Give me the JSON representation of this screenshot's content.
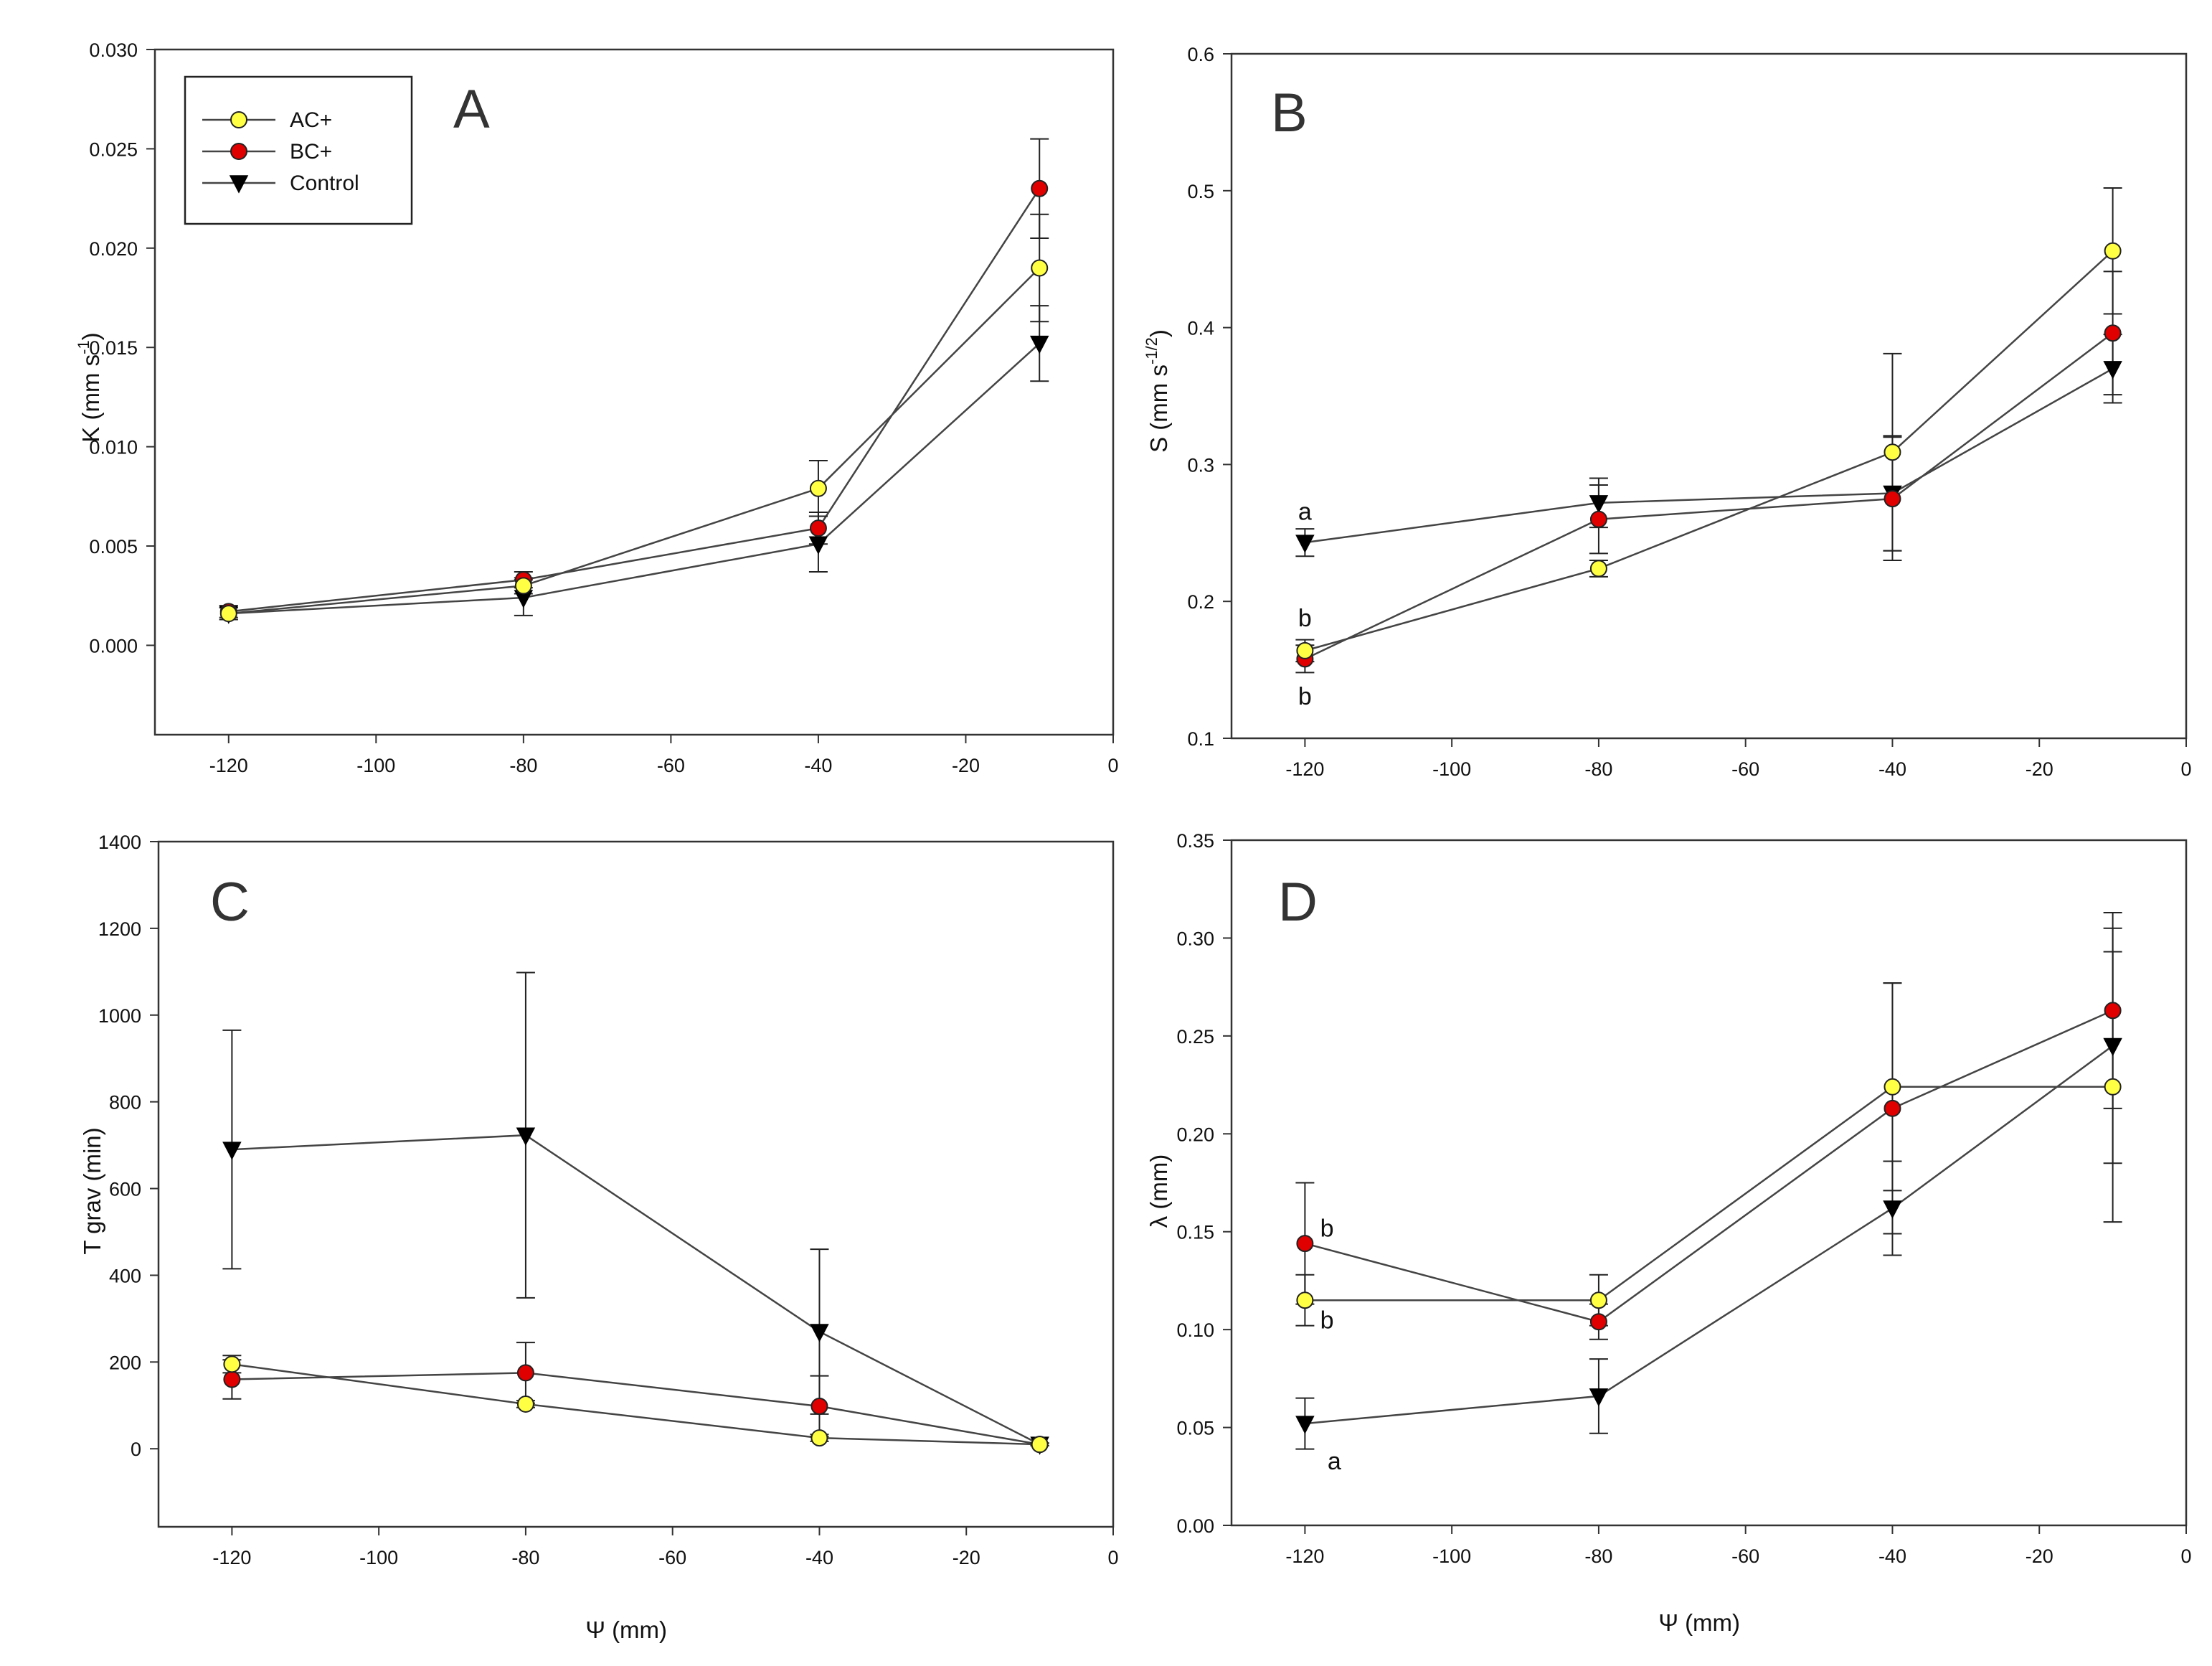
{
  "chart_data": [
    {
      "panel": "A",
      "type": "line",
      "ylabel": "K (mm s",
      "ylabel_sup": "-1",
      "ylabel_end": ")",
      "xlabel": "",
      "xlim": [
        -130,
        0
      ],
      "ylim": [
        -0.0045,
        0.03
      ],
      "xticks": [
        -120,
        -100,
        -80,
        -60,
        -40,
        -20,
        0
      ],
      "xtick_labels": [
        "-120",
        "-100",
        "-80",
        "-60",
        "-40",
        "-20",
        "0"
      ],
      "yticks": [
        0,
        0.005,
        0.01,
        0.015,
        0.02,
        0.025,
        0.03
      ],
      "ytick_labels": [
        "0.000",
        "0.005",
        "0.010",
        "0.015",
        "0.020",
        "0.025",
        "0.030"
      ],
      "x": [
        -120,
        -80,
        -40,
        -10
      ],
      "series": [
        {
          "name": "AC+",
          "values": [
            0.0016,
            0.003,
            0.0079,
            0.019
          ],
          "errors": [
            0.0003,
            0.0004,
            0.0014,
            0.0027
          ]
        },
        {
          "name": "BC+",
          "values": [
            0.0017,
            0.0033,
            0.0059,
            0.023
          ],
          "errors": [
            0.0003,
            0.0004,
            0.0008,
            0.0025
          ]
        },
        {
          "name": "Control",
          "values": [
            0.0016,
            0.0024,
            0.0051,
            0.0152
          ],
          "errors": [
            0.0003,
            0.0009,
            0.0014,
            0.0019
          ]
        }
      ],
      "legend": {
        "entries": [
          "AC+",
          "BC+",
          "Control"
        ],
        "position": "top-left"
      },
      "annotations": []
    },
    {
      "panel": "B",
      "type": "line",
      "ylabel": "S (mm s",
      "ylabel_sup": "-1/2",
      "ylabel_end": ")",
      "xlabel": "",
      "xlim": [
        -130,
        0
      ],
      "ylim": [
        0.1,
        0.6
      ],
      "xticks": [
        -120,
        -100,
        -80,
        -60,
        -40,
        -20,
        0
      ],
      "xtick_labels": [
        "-120",
        "-100",
        "-80",
        "-60",
        "-40",
        "-20",
        "0"
      ],
      "yticks": [
        0.1,
        0.2,
        0.3,
        0.4,
        0.5,
        0.6
      ],
      "ytick_labels": [
        "0.1",
        "0.2",
        "0.3",
        "0.4",
        "0.5",
        "0.6"
      ],
      "x": [
        -120,
        -80,
        -40,
        -10
      ],
      "series": [
        {
          "name": "AC+",
          "values": [
            0.164,
            0.224,
            0.309,
            0.456
          ],
          "errors": [
            0.008,
            0.006,
            0.072,
            0.046
          ]
        },
        {
          "name": "BC+",
          "values": [
            0.158,
            0.26,
            0.275,
            0.396
          ],
          "errors": [
            0.01,
            0.025,
            0.045,
            0.045
          ]
        },
        {
          "name": "Control",
          "values": [
            0.243,
            0.272,
            0.279,
            0.37
          ],
          "errors": [
            0.01,
            0.018,
            0.042,
            0.025
          ]
        }
      ],
      "annotations": [
        {
          "text": "a",
          "x": -120,
          "y": 0.266
        },
        {
          "text": "b",
          "x": -120,
          "y": 0.188
        },
        {
          "text": "b",
          "x": -120,
          "y": 0.131
        }
      ]
    },
    {
      "panel": "C",
      "type": "line",
      "ylabel": "T grav (min)",
      "xlabel": "Ψ (mm)",
      "xlim": [
        -130,
        0
      ],
      "ylim": [
        -180,
        1400
      ],
      "xticks": [
        -120,
        -100,
        -80,
        -60,
        -40,
        -20,
        0
      ],
      "xtick_labels": [
        "-120",
        "-100",
        "-80",
        "-60",
        "-40",
        "-20",
        "0"
      ],
      "yticks": [
        0,
        200,
        400,
        600,
        800,
        1000,
        1200,
        1400
      ],
      "ytick_labels": [
        "0",
        "200",
        "400",
        "600",
        "800",
        "1000",
        "1200",
        "1400"
      ],
      "x": [
        -120,
        -80,
        -40,
        -10
      ],
      "series": [
        {
          "name": "AC+",
          "values": [
            195,
            103,
            25,
            10
          ],
          "errors": [
            20,
            8,
            8,
            3
          ]
        },
        {
          "name": "BC+",
          "values": [
            160,
            175,
            98,
            10
          ],
          "errors": [
            45,
            70,
            70,
            3
          ]
        },
        {
          "name": "Control",
          "values": [
            690,
            723,
            270,
            10
          ],
          "errors": [
            275,
            375,
            190,
            3
          ]
        }
      ],
      "annotations": []
    },
    {
      "panel": "D",
      "type": "line",
      "ylabel": "λ (mm)",
      "xlabel": "Ψ (mm)",
      "xlim": [
        -130,
        0
      ],
      "ylim": [
        0,
        0.35
      ],
      "xticks": [
        -120,
        -100,
        -80,
        -60,
        -40,
        -20,
        0
      ],
      "xtick_labels": [
        "-120",
        "-100",
        "-80",
        "-60",
        "-40",
        "-20",
        "0"
      ],
      "yticks": [
        0,
        0.05,
        0.1,
        0.15,
        0.2,
        0.25,
        0.3,
        0.35
      ],
      "ytick_labels": [
        "0.00",
        "0.05",
        "0.10",
        "0.15",
        "0.20",
        "0.25",
        "0.30",
        "0.35"
      ],
      "x": [
        -120,
        -80,
        -40,
        -10
      ],
      "series": [
        {
          "name": "AC+",
          "values": [
            0.115,
            0.115,
            0.224,
            0.224
          ],
          "errors": [
            0.013,
            0.013,
            0.053,
            0.069
          ]
        },
        {
          "name": "BC+",
          "values": [
            0.144,
            0.104,
            0.213,
            0.263
          ],
          "errors": [
            0.031,
            0.009,
            0.064,
            0.05
          ]
        },
        {
          "name": "Control",
          "values": [
            0.052,
            0.066,
            0.162,
            0.245
          ],
          "errors": [
            0.013,
            0.019,
            0.024,
            0.06
          ]
        }
      ],
      "annotations": [
        {
          "text": "b",
          "x": -117,
          "y": 0.152
        },
        {
          "text": "b",
          "x": -117,
          "y": 0.105
        },
        {
          "text": "a",
          "x": -116,
          "y": 0.033
        }
      ]
    }
  ],
  "colors": {
    "AC+": "#ffff44",
    "BC+": "#e00000",
    "Control": "#000000",
    "axis": "#333333",
    "line": "#444444"
  }
}
